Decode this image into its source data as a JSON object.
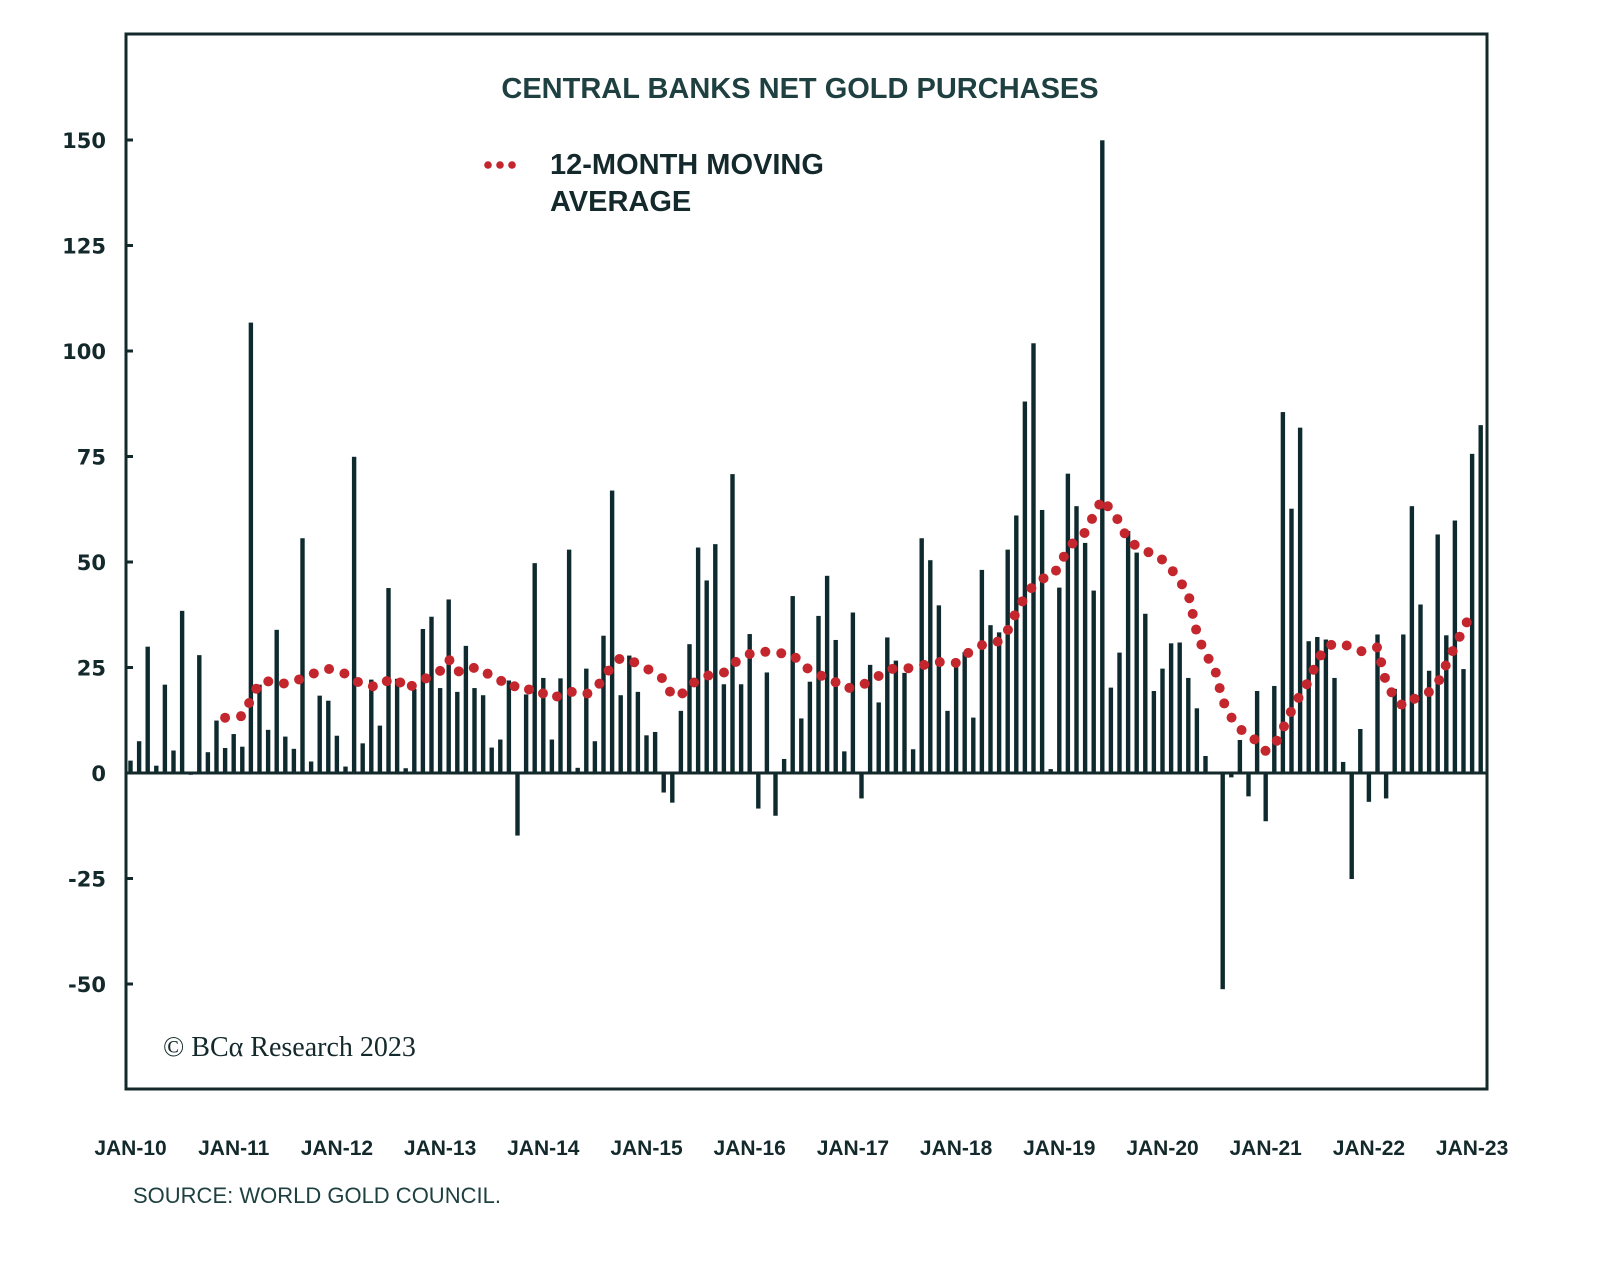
{
  "colors": {
    "bars": "#0e2a2e",
    "moving_average": "#c3262d",
    "frame": "#14292b"
  },
  "chart_data": {
    "type": "bar",
    "title": "CENTRAL BANKS NET GOLD PURCHASES",
    "xlabel": "",
    "ylabel": "",
    "ylim": [
      -75,
      175
    ],
    "yticks": [
      150,
      125,
      100,
      75,
      50,
      25,
      0,
      -25,
      -50
    ],
    "ytick_labels": [
      "150",
      "125",
      "100",
      "75",
      "50",
      "25",
      "0",
      "-25",
      "-50"
    ],
    "xtick_labels": [
      "JAN-10",
      "JAN-11",
      "JAN-12",
      "JAN-13",
      "JAN-14",
      "JAN-15",
      "JAN-16",
      "JAN-17",
      "JAN-18",
      "JAN-19",
      "JAN-20",
      "JAN-21",
      "JAN-22",
      "JAN-23"
    ],
    "x_start": "Jan 2010",
    "x_frequency": "monthly",
    "grid": false,
    "legend": {
      "placement": "top-center",
      "entries": [
        {
          "label_line1": "12-MONTH MOVING",
          "label_line2": "AVERAGE",
          "style": "red dotted line"
        }
      ]
    },
    "annotations": {
      "copyright": "© BCα Research 2023",
      "source": "SOURCE: WORLD GOLD COUNCIL."
    },
    "series": [
      {
        "name": "Monthly net purchases",
        "type": "bar",
        "values": [
          3,
          7.6,
          30,
          1.8,
          21,
          5.4,
          38.5,
          -0.5,
          28,
          5,
          12.5,
          6,
          9.3,
          6.3,
          106.8,
          21,
          10.3,
          34,
          8.7,
          5.8,
          55.7,
          2.8,
          18.4,
          17.2,
          8.9,
          1.6,
          75,
          7.1,
          22.2,
          11.3,
          43.9,
          22.4,
          1.2,
          20,
          34.2,
          37.1,
          20.2,
          41.2,
          19.3,
          30.2,
          20.2,
          18.5,
          6.1,
          8,
          22,
          -14.9,
          18.7,
          49.8,
          22.6,
          8,
          22.5,
          53,
          1.3,
          24.8,
          7.6,
          32.6,
          67,
          18.5,
          27.9,
          19.3,
          9,
          9.8,
          -4.7,
          -7.1,
          14.8,
          30.6,
          53.5,
          45.7,
          54.3,
          21.1,
          70.9,
          21.1,
          33,
          -8.5,
          23.9,
          -10.2,
          3.4,
          42,
          13,
          21.7,
          37.3,
          46.8,
          31.6,
          5.2,
          38.1,
          -6.1,
          25.7,
          16.8,
          32.2,
          26.7,
          23.8,
          5.7,
          55.7,
          50.5,
          39.8,
          14.8,
          25.2,
          28.7,
          13.2,
          48.2,
          35.1,
          33.4,
          53,
          61.1,
          88.1,
          101.9,
          62.4,
          1,
          44,
          71,
          63.3,
          54.6,
          43.3,
          150,
          20.3,
          28.6,
          57.4,
          52.3,
          37.8,
          19.5,
          24.8,
          30.8,
          31,
          22.6,
          15.4,
          4.1,
          0,
          -51.3,
          -1.1,
          7.9,
          -5.6,
          19.5,
          -11.5,
          20.7,
          85.6,
          62.7,
          81.9,
          31.3,
          32.3,
          31.7,
          22.6,
          2.7,
          -25.2,
          10.5,
          -6.9,
          32.9,
          -6.1,
          20,
          32.9,
          63.3,
          40,
          24.3,
          56.6,
          32.7,
          59.9,
          24.7,
          75.7,
          82.5
        ]
      },
      {
        "name": "12-MONTH MOVING AVERAGE",
        "type": "line",
        "start_index": 11,
        "values": [
          13.1,
          13.3,
          13.5,
          17.4,
          21.5,
          21.7,
          21.8,
          21.1,
          21.8,
          22.4,
          23.4,
          24.0,
          24.7,
          24.1,
          23.5,
          22.2,
          20.8,
          20.6,
          20.4,
          22.1,
          22.4,
          19.8,
          21.0,
          22.1,
          23.0,
          24.2,
          27.0,
          23.9,
          25.0,
          24.9,
          24.7,
          22.5,
          21.8,
          22.0,
          19.8,
          19.6,
          20.2,
          18.8,
          17.6,
          18.5,
          19.4,
          18.8,
          18.7,
          19.7,
          22.5,
          25.5,
          27.3,
          26.6,
          26.0,
          24.8,
          23.6,
          22.2,
          18.2,
          18.5,
          20.6,
          22.2,
          23.0,
          23.5,
          23.8,
          25.9,
          27.0,
          28.2,
          28.8,
          28.7,
          28.5,
          28.3,
          28.1,
          25.8,
          24.4,
          23.1,
          22.9,
          21.5,
          20.0,
          20.3,
          20.7,
          21.9,
          23.0,
          24.5,
          24.8,
          24.7,
          25.0,
          25.5,
          25.9,
          26.3,
          26.2,
          26.1,
          27.8,
          29.4,
          30.3,
          30.8,
          31.2,
          33.8,
          38.2,
          41.7,
          44.5,
          46.1,
          46.3,
          49.0,
          53.3,
          55.3,
          57.0,
          61.0,
          65.0,
          62.2,
          59.5,
          55.0,
          53.8,
          52.4,
          52.2,
          50.5,
          48.4,
          45.5,
          42.5,
          33.1,
          28.0,
          25.4,
          17.2,
          13.2,
          10.5,
          8.8,
          7.6,
          5.2,
          6.5,
          10.5,
          14.8,
          18.5,
          21.8,
          26.5,
          30.0,
          30.6,
          30.6,
          29.7,
          28.8,
          29.3,
          29.8,
          21.4,
          17.8,
          15.8,
          17.2,
          18.5,
          19.2,
          21.2,
          25.8,
          30.0,
          34.2,
          38.2
        ]
      }
    ]
  }
}
